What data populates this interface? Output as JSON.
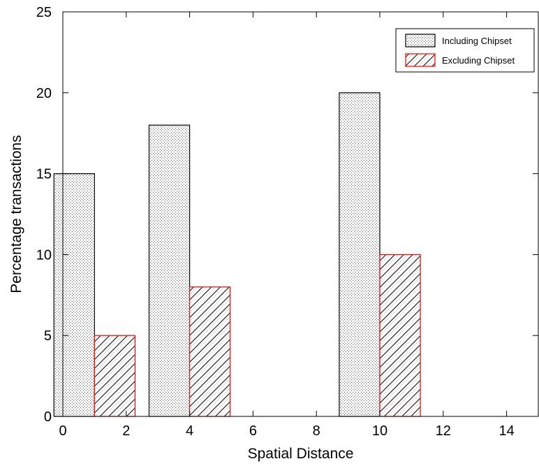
{
  "chart_data": {
    "type": "bar",
    "xlabel": "Spatial Distance",
    "ylabel": "Percentage transactions",
    "xlim": [
      0,
      15
    ],
    "ylim": [
      0,
      25
    ],
    "xticks": [
      0,
      2,
      4,
      6,
      8,
      10,
      12,
      14
    ],
    "yticks": [
      0,
      5,
      10,
      15,
      20,
      25
    ],
    "bar_width": 1.28,
    "grid": false,
    "legend_position": "top-right",
    "series": [
      {
        "name": "Including Chipset",
        "pattern": "dots",
        "edge_color": "#000000",
        "points": [
          {
            "x": 0.36,
            "y": 15
          },
          {
            "x": 3.36,
            "y": 18
          },
          {
            "x": 9.36,
            "y": 20
          }
        ]
      },
      {
        "name": "Excluding Chipset",
        "pattern": "diagonal-hatch",
        "edge_color": "#ff0000",
        "points": [
          {
            "x": 1.64,
            "y": 5
          },
          {
            "x": 4.64,
            "y": 8
          },
          {
            "x": 10.64,
            "y": 10
          }
        ]
      }
    ]
  }
}
